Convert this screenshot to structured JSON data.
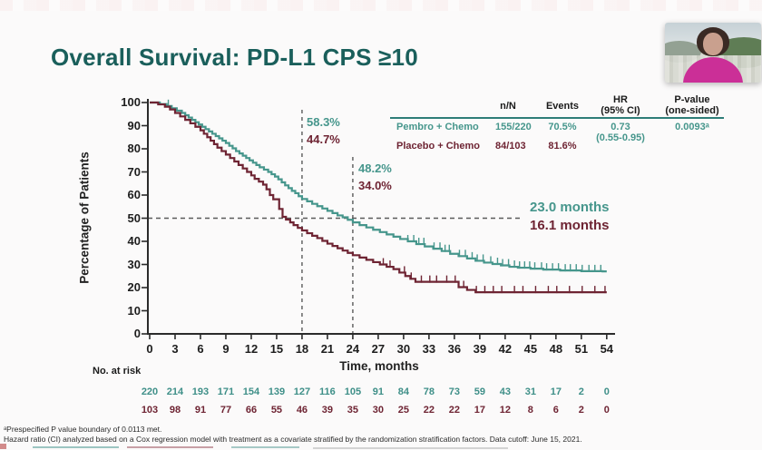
{
  "page": {
    "title": "Overall Survival: PD-L1 CPS ≥10"
  },
  "colors": {
    "title": "#1a5f5b",
    "pembro": "#46968c",
    "placebo": "#6e2433",
    "axis": "#2b2b2b",
    "dashed": "#5a5a5a",
    "table_line": "#2e7d78"
  },
  "summary_table": {
    "col_nn": "n/N",
    "col_events": "Events",
    "col_hr_line1": "HR",
    "col_hr_line2": "(95% CI)",
    "col_p_line1": "P-value",
    "col_p_line2": "(one-sided)",
    "rows": [
      {
        "label": "Pembro + Chemo",
        "n_N": "155/220",
        "events": "70.5%"
      },
      {
        "label": "Placebo + Chemo",
        "n_N": "84/103",
        "events": "81.6%"
      }
    ],
    "hr_value": "0.73",
    "hr_ci": "(0.55-0.95)",
    "p_value": "0.0093ᵃ"
  },
  "annotations": {
    "month18_pembro": "58.3%",
    "month18_placebo": "44.7%",
    "month24_pembro": "48.2%",
    "month24_placebo": "34.0%",
    "median_pembro": "23.0 months",
    "median_placebo": "16.1 months"
  },
  "chart_data": {
    "type": "line",
    "subtype": "kaplan-meier-step",
    "title": "Overall Survival: PD-L1 CPS ≥10",
    "xlabel": "Time, months",
    "ylabel": "Percentage of Patients",
    "xlim": [
      0,
      54
    ],
    "ylim": [
      0,
      100
    ],
    "grid": false,
    "x_ticks": [
      0,
      3,
      6,
      9,
      12,
      15,
      18,
      21,
      24,
      27,
      30,
      33,
      36,
      39,
      42,
      45,
      48,
      51,
      54
    ],
    "y_ticks": [
      0,
      10,
      20,
      30,
      40,
      50,
      60,
      70,
      80,
      90,
      100
    ],
    "reference_lines": {
      "horizontal_pct": 50,
      "vertical_months": [
        18,
        24
      ]
    },
    "series": [
      {
        "name": "Pembro + Chemo",
        "color": "#46968c",
        "median_months": 23.0,
        "rate_at_18mo": 58.3,
        "rate_at_24mo": 48.2,
        "points": [
          [
            0,
            100
          ],
          [
            1.2,
            99.3
          ],
          [
            2,
            98.5
          ],
          [
            2.6,
            97.5
          ],
          [
            3.2,
            96.5
          ],
          [
            3.8,
            95.5
          ],
          [
            4.2,
            94.5
          ],
          [
            4.6,
            93.5
          ],
          [
            5,
            92.5
          ],
          [
            5.4,
            91.5
          ],
          [
            5.8,
            90.5
          ],
          [
            6.2,
            89.5
          ],
          [
            6.6,
            88.5
          ],
          [
            7,
            87.5
          ],
          [
            7.4,
            86.5
          ],
          [
            7.8,
            85.5
          ],
          [
            8.2,
            84.5
          ],
          [
            8.6,
            83.5
          ],
          [
            9,
            82.5
          ],
          [
            9.4,
            81.3
          ],
          [
            9.8,
            80.2
          ],
          [
            10.2,
            79
          ],
          [
            10.6,
            78
          ],
          [
            11,
            77
          ],
          [
            11.4,
            76
          ],
          [
            11.8,
            75
          ],
          [
            12.2,
            74
          ],
          [
            12.6,
            73
          ],
          [
            13,
            72
          ],
          [
            13.5,
            71
          ],
          [
            14,
            70
          ],
          [
            14.4,
            69
          ],
          [
            14.8,
            68
          ],
          [
            15.2,
            66.8
          ],
          [
            15.6,
            65.5
          ],
          [
            16,
            64.2
          ],
          [
            16.4,
            63
          ],
          [
            16.8,
            61.8
          ],
          [
            17.2,
            60.8
          ],
          [
            17.6,
            59.5
          ],
          [
            18,
            58.3
          ],
          [
            18.6,
            57.3
          ],
          [
            19.2,
            56.2
          ],
          [
            19.8,
            55.2
          ],
          [
            20.4,
            54.2
          ],
          [
            21,
            53.2
          ],
          [
            21.6,
            52.2
          ],
          [
            22.2,
            51.2
          ],
          [
            22.8,
            50.4
          ],
          [
            23.4,
            49.3
          ],
          [
            24,
            48.2
          ],
          [
            24.8,
            47
          ],
          [
            25.6,
            46
          ],
          [
            26.4,
            45
          ],
          [
            27.2,
            44
          ],
          [
            28,
            43
          ],
          [
            28.8,
            42
          ],
          [
            29.6,
            41
          ],
          [
            30.5,
            40
          ],
          [
            31.5,
            38.8
          ],
          [
            32.5,
            37.8
          ],
          [
            33.5,
            36.8
          ],
          [
            34.5,
            35.8
          ],
          [
            35.5,
            34.6
          ],
          [
            36.5,
            33.6
          ],
          [
            37.5,
            32.6
          ],
          [
            38.5,
            31.6
          ],
          [
            39.5,
            30.8
          ],
          [
            40.5,
            30.2
          ],
          [
            41.5,
            29.6
          ],
          [
            42.5,
            29
          ],
          [
            43.5,
            28.6
          ],
          [
            45,
            28.2
          ],
          [
            46.5,
            27.8
          ],
          [
            48.5,
            27.4
          ],
          [
            51,
            27.1
          ],
          [
            53.5,
            27
          ]
        ],
        "censor_marks": [
          2.2,
          30.5,
          31.2,
          31.8,
          32.4,
          33.6,
          34.3,
          34.9,
          35.4,
          36.6,
          37.3,
          38.1,
          38.7,
          39.4,
          40.3,
          41.1,
          41.7,
          42.4,
          43.1,
          43.7,
          44.3,
          44.9,
          45.5,
          46.3,
          46.9,
          47.6,
          48.3,
          49.1,
          49.7,
          50.4,
          51.1,
          51.9,
          52.6,
          53.3
        ]
      },
      {
        "name": "Placebo + Chemo",
        "color": "#6e2433",
        "median_months": 16.1,
        "rate_at_18mo": 44.7,
        "rate_at_24mo": 34.0,
        "points": [
          [
            0,
            100
          ],
          [
            1,
            99.2
          ],
          [
            1.8,
            98.2
          ],
          [
            2.4,
            97
          ],
          [
            3,
            95.5
          ],
          [
            3.6,
            94
          ],
          [
            4.2,
            92.5
          ],
          [
            4.8,
            91
          ],
          [
            5.4,
            89.5
          ],
          [
            6,
            88
          ],
          [
            6.4,
            86.5
          ],
          [
            6.8,
            85
          ],
          [
            7.2,
            83.5
          ],
          [
            7.6,
            82
          ],
          [
            8,
            80.5
          ],
          [
            8.5,
            79
          ],
          [
            9,
            77.5
          ],
          [
            9.5,
            76
          ],
          [
            10,
            74.5
          ],
          [
            10.5,
            73
          ],
          [
            11,
            71.5
          ],
          [
            11.5,
            70
          ],
          [
            12,
            68.5
          ],
          [
            12.4,
            67
          ],
          [
            12.9,
            65.8
          ],
          [
            13.4,
            64.5
          ],
          [
            13.8,
            62.5
          ],
          [
            14.2,
            60
          ],
          [
            14.6,
            58.2
          ],
          [
            15.3,
            54
          ],
          [
            15.7,
            50.6
          ],
          [
            16.1,
            49.4
          ],
          [
            16.6,
            48.2
          ],
          [
            17,
            47
          ],
          [
            17.5,
            45.8
          ],
          [
            18,
            44.7
          ],
          [
            18.6,
            43.5
          ],
          [
            19.2,
            42.4
          ],
          [
            19.8,
            41.4
          ],
          [
            20.4,
            40.2
          ],
          [
            21,
            39
          ],
          [
            21.6,
            38
          ],
          [
            22.2,
            37
          ],
          [
            22.8,
            36
          ],
          [
            23.4,
            35
          ],
          [
            24,
            34
          ],
          [
            24.8,
            33
          ],
          [
            25.6,
            32
          ],
          [
            26.4,
            31
          ],
          [
            27.2,
            30
          ],
          [
            28,
            29
          ],
          [
            28.8,
            28
          ],
          [
            29.5,
            26.5
          ],
          [
            30.2,
            25
          ],
          [
            30.8,
            23.8
          ],
          [
            31.4,
            22.5
          ],
          [
            36.5,
            20.2
          ],
          [
            37.5,
            19
          ],
          [
            38.5,
            18
          ],
          [
            53.8,
            18
          ]
        ],
        "censor_marks": [
          27.6,
          28.4,
          30.1,
          30.9,
          32.1,
          33.1,
          33.9,
          35.1,
          36.1,
          37.1,
          38.6,
          39.6,
          40.6,
          41.6,
          43.1,
          44.1,
          45.6,
          47.1,
          48.1,
          49.6,
          51.1,
          52.6,
          53.8
        ]
      }
    ],
    "no_at_risk": {
      "label": "No. at risk",
      "rows": [
        {
          "name": "Pembro + Chemo",
          "color": "#3e8f88",
          "values": [
            220,
            214,
            193,
            171,
            154,
            139,
            127,
            116,
            105,
            91,
            84,
            78,
            73,
            59,
            43,
            31,
            17,
            2,
            0
          ]
        },
        {
          "name": "Placebo + Chemo",
          "color": "#6e2433",
          "values": [
            103,
            98,
            91,
            77,
            66,
            55,
            46,
            39,
            35,
            30,
            25,
            22,
            22,
            17,
            12,
            8,
            6,
            2,
            0
          ]
        }
      ]
    }
  },
  "footnotes": [
    "ᵃPrespecified P value boundary of 0.0113 met.",
    "Hazard ratio (CI) analyzed based on a Cox regression model with treatment as a covariate stratified by the randomization stratification factors. Data cutoff: June 15, 2021."
  ]
}
